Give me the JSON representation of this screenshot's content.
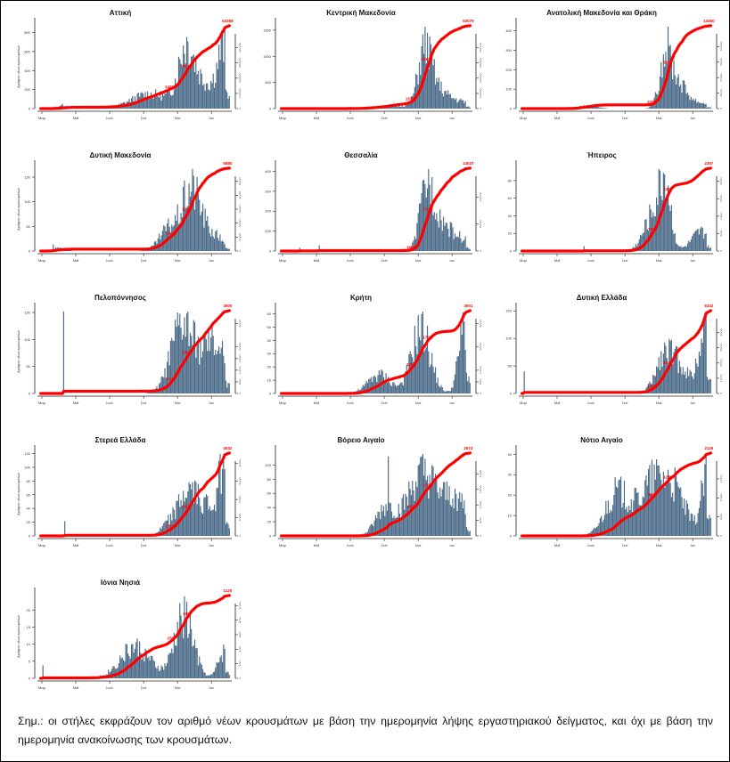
{
  "note": "Σημ.: οι στήλες εκφράζουν τον αριθμό νέων κρουσμάτων με βάση την ημερομηνία λήψης εργαστηριακού δείγματος, και όχι με βάση την ημερομηνία ανακοίνωσης των κρουσμάτων.",
  "colors": {
    "bars": "#4a6a88",
    "line": "#ff0000",
    "label": "#ff0000"
  },
  "chart_data": [
    {
      "type": "bar+line",
      "title": "Αττική",
      "ylabel": "Αριθμός νέων κρουσμάτων",
      "x_ticks": [
        "Μαρ",
        "Μαΐ",
        "Ιουλ",
        "Σεπ",
        "Νοε",
        "Ιαν"
      ],
      "left_ticks": [
        0,
        200,
        400,
        600,
        800
      ],
      "left_max": 880,
      "right_ticks": [
        0,
        10000,
        20000,
        30000,
        40000,
        50000
      ],
      "right_max": 55000,
      "final_total": "53368",
      "mid_labels": [
        "14200",
        "25100"
      ],
      "profile": "attica"
    },
    {
      "type": "bar+line",
      "title": "Κεντρική Μακεδονία",
      "ylabel": "",
      "x_ticks": [
        "Μαρ",
        "Μαΐ",
        "Ιουλ",
        "Σεπ",
        "Νοε",
        "Ιαν"
      ],
      "left_ticks": [
        0,
        500,
        1000,
        1500
      ],
      "left_max": 1600,
      "right_ticks": [
        0,
        10000,
        20000,
        30000,
        40000,
        50000
      ],
      "right_max": 55000,
      "final_total": "53079",
      "mid_labels": [
        "15760",
        "26676"
      ],
      "profile": "cmac"
    },
    {
      "type": "bar+line",
      "title": "Ανατολική Μακεδονία και Θράκη",
      "ylabel": "",
      "x_ticks": [
        "Μαρ",
        "Μαΐ",
        "Ιουλ",
        "Σεπ",
        "Νοε",
        "Ιαν"
      ],
      "left_ticks": [
        0,
        100,
        200,
        300,
        400
      ],
      "left_max": 430,
      "right_ticks": [
        0,
        2500,
        5000,
        7500,
        10000
      ],
      "right_max": 13500,
      "final_total": "13460",
      "mid_labels": [
        "3376",
        "6534"
      ],
      "profile": "emac"
    },
    {
      "type": "bar+line",
      "title": "Δυτική Μακεδονία",
      "ylabel": "Αριθμός νέων κρουσμάτων",
      "x_ticks": [
        "Μαρ",
        "Μαΐ",
        "Ιουλ",
        "Σεπ",
        "Νοε",
        "Ιαν"
      ],
      "left_ticks": [
        0,
        50,
        100,
        150
      ],
      "left_max": 170,
      "right_ticks": [
        0,
        1000,
        2000,
        3000,
        4000,
        5000,
        6000
      ],
      "right_max": 6000,
      "final_total": "5880",
      "mid_labels": [
        "1600",
        "3270"
      ],
      "profile": "wmac"
    },
    {
      "type": "bar+line",
      "title": "Θεσσαλία",
      "ylabel": "",
      "x_ticks": [
        "Μαρ",
        "Μαΐ",
        "Ιουλ",
        "Σεπ",
        "Νοε",
        "Ιαν"
      ],
      "left_ticks": [
        0,
        100,
        200,
        300,
        400
      ],
      "left_max": 420,
      "right_ticks": [
        0,
        5000,
        10000,
        15000
      ],
      "right_max": 15500,
      "final_total": "14537",
      "mid_labels": [
        "3600",
        "7200"
      ],
      "profile": "thes"
    },
    {
      "type": "bar+line",
      "title": "Ήπειρος",
      "ylabel": "",
      "x_ticks": [
        "Μαρ",
        "Μαΐ",
        "Ιουλ",
        "Σεπ",
        "Νοε",
        "Ιαν"
      ],
      "left_ticks": [
        0,
        20,
        40,
        60,
        80
      ],
      "left_max": 95,
      "right_ticks": [
        0,
        500,
        1000,
        1500,
        2000
      ],
      "right_max": 2400,
      "final_total": "2357",
      "mid_labels": [
        "900",
        "1300"
      ],
      "profile": "epir"
    },
    {
      "type": "bar+line",
      "title": "Πελοπόννησος",
      "ylabel": "Αριθμός νέων κρουσμάτων",
      "x_ticks": [
        "Μαρ",
        "Μαΐ",
        "Ιουλ",
        "Σεπ",
        "Νοε",
        "Ιαν"
      ],
      "left_ticks": [
        0,
        50,
        100,
        150
      ],
      "left_max": 155,
      "right_ticks": [
        0,
        500,
        1000,
        1500,
        2000,
        3000
      ],
      "right_max": 3600,
      "final_total": "3500",
      "mid_labels": [
        "1200",
        "1900"
      ],
      "profile": "pelo"
    },
    {
      "type": "bar+line",
      "title": "Κρήτη",
      "ylabel": "",
      "x_ticks": [
        "Μαρ",
        "Μαΐ",
        "Ιουλ",
        "Σεπ",
        "Νοε",
        "Ιαν"
      ],
      "left_ticks": [
        0,
        10,
        20,
        30,
        40,
        50,
        60
      ],
      "left_max": 63,
      "right_ticks": [
        0,
        500,
        1000,
        2000,
        3000
      ],
      "right_max": 3600,
      "final_total": "3501",
      "mid_labels": [
        "1000",
        "1700"
      ],
      "profile": "cret"
    },
    {
      "type": "bar+line",
      "title": "Δυτική Ελλάδα",
      "ylabel": "",
      "x_ticks": [
        "Μαρ",
        "Μαΐ",
        "Ιουλ",
        "Σεπ",
        "Νοε",
        "Ιαν"
      ],
      "left_ticks": [
        0,
        50,
        100,
        150
      ],
      "left_max": 152,
      "right_ticks": [
        0,
        1000,
        2000,
        3000,
        4000,
        5000
      ],
      "right_max": 5500,
      "final_total": "5332",
      "mid_labels": [
        "1500",
        "2620"
      ],
      "profile": "wgre"
    },
    {
      "type": "bar+line",
      "title": "Στερεά Ελλάδα",
      "ylabel": "Αριθμός νέων κρουσμάτων",
      "x_ticks": [
        "Μαρ",
        "Μαΐ",
        "Ιουλ",
        "Σεπ",
        "Νοε",
        "Ιαν"
      ],
      "left_ticks": [
        0,
        20,
        40,
        60,
        80,
        100,
        120
      ],
      "left_max": 122,
      "right_ticks": [
        0,
        1000,
        2000,
        3000,
        4000
      ],
      "right_max": 4600,
      "final_total": "4532",
      "mid_labels": [
        "1700",
        "2600"
      ],
      "profile": "ster"
    },
    {
      "type": "bar+line",
      "title": "Βόρειο Αιγαίο",
      "ylabel": "",
      "x_ticks": [
        "Μαρ",
        "Μαΐ",
        "Ιουλ",
        "Σεπ",
        "Νοε",
        "Ιαν"
      ],
      "left_ticks": [
        0,
        20,
        40,
        60,
        80,
        100
      ],
      "left_max": 118,
      "right_ticks": [
        0,
        500,
        1000,
        1500,
        2000,
        2500
      ],
      "right_max": 2700,
      "final_total": "2673",
      "mid_labels": [
        "663",
        "1200"
      ],
      "profile": "naeg"
    },
    {
      "type": "bar+line",
      "title": "Νότιο Αιγαίο",
      "ylabel": "",
      "x_ticks": [
        "Μαΐ",
        "Ιουλ",
        "Σεπ",
        "Νοε",
        "Ιαν"
      ],
      "left_ticks": [
        0,
        10,
        20,
        30,
        40
      ],
      "left_max": 41,
      "right_ticks": [
        0,
        500,
        1000,
        1500,
        2000
      ],
      "right_max": 2200,
      "final_total": "2126",
      "mid_labels": [
        "800",
        "1200"
      ],
      "profile": "saeg"
    },
    {
      "type": "bar+line",
      "title": "Ιόνια Νησιά",
      "ylabel": "Αριθμός νέων κρουσμάτων",
      "x_ticks": [
        "Μαρ",
        "Μαΐ",
        "Ιουλ",
        "Σεπ",
        "Νοε",
        "Ιαν"
      ],
      "left_ticks": [
        0,
        5,
        10,
        15,
        20
      ],
      "left_max": 24.5,
      "right_ticks": [
        0,
        200,
        400,
        600,
        800,
        1000
      ],
      "right_max": 1150,
      "final_total": "1125",
      "mid_labels": [
        "370",
        "600"
      ],
      "profile": "ioni"
    }
  ]
}
